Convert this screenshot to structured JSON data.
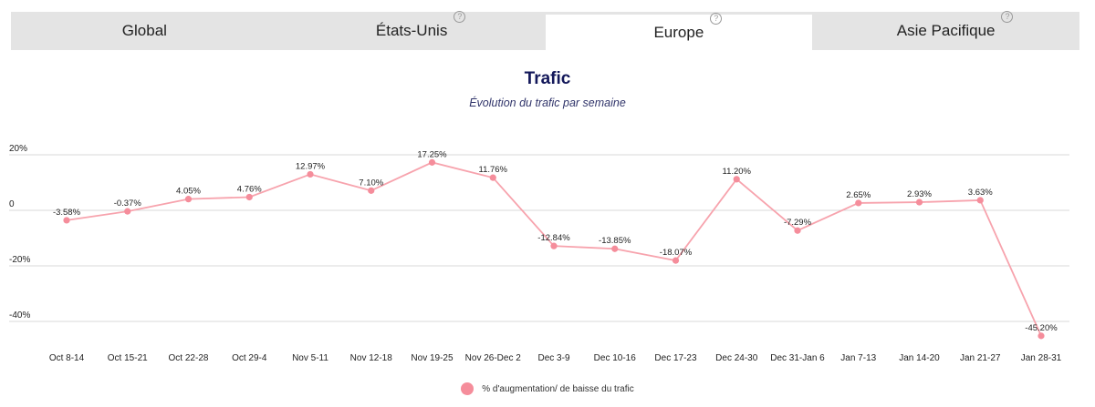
{
  "tabs": [
    {
      "label": "Global",
      "help": false
    },
    {
      "label": "États-Unis",
      "help": true
    },
    {
      "label": "Europe",
      "help": true
    },
    {
      "label": "Asie Pacifique",
      "help": true
    }
  ],
  "active_tab": 2,
  "help_glyph": "?",
  "colors": {
    "series": "#f7a3ad",
    "point": "#f58d9b",
    "grid": "#d9d9d9",
    "title": "#13185a"
  },
  "chart_data": {
    "type": "line",
    "title": "Trafic",
    "subtitle": "Évolution du trafic par semaine",
    "xlabel": "",
    "ylabel": "",
    "categories": [
      "Oct 8-14",
      "Oct 15-21",
      "Oct 22-28",
      "Oct 29-4",
      "Nov 5-11",
      "Nov 12-18",
      "Nov 19-25",
      "Nov 26-Dec 2",
      "Dec 3-9",
      "Dec 10-16",
      "Dec 17-23",
      "Dec 24-30",
      "Dec 31-Jan 6",
      "Jan 7-13",
      "Jan 14-20",
      "Jan 21-27",
      "Jan 28-31"
    ],
    "series": [
      {
        "name": "% d'augmentation/ de baisse du trafic",
        "values": [
          -3.58,
          -0.37,
          4.05,
          4.76,
          12.97,
          7.1,
          17.25,
          11.76,
          -12.84,
          -13.85,
          -18.07,
          11.2,
          -7.29,
          2.65,
          2.93,
          3.63,
          -45.2
        ],
        "labels": [
          "-3.58%",
          "-0.37%",
          "4.05%",
          "4.76%",
          "12.97%",
          "7.10%",
          "17.25%",
          "11.76%",
          "-12.84%",
          "-13.85%",
          "-18.07%",
          "11.20%",
          "-7.29%",
          "2.65%",
          "2.93%",
          "3.63%",
          "-45.20%"
        ]
      }
    ],
    "yticks": [
      20,
      0,
      -20,
      -40
    ],
    "ytick_labels": [
      "20%",
      "0",
      "-20%",
      "-40%"
    ],
    "ylim": [
      -47,
      22
    ],
    "grid": true,
    "legend_position": "bottom-center"
  }
}
